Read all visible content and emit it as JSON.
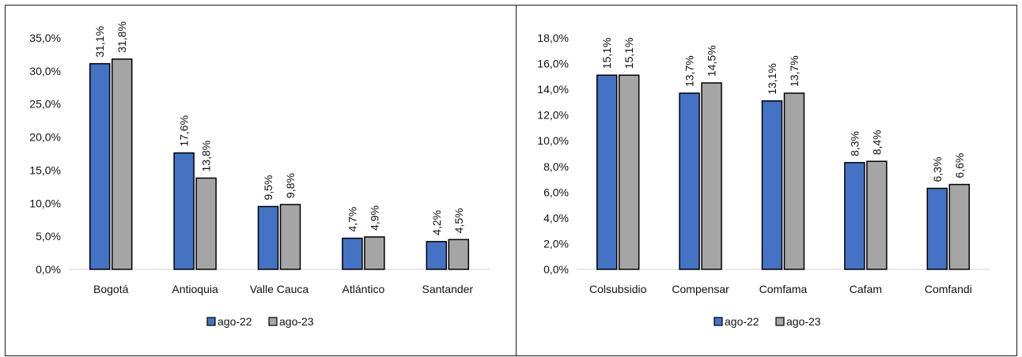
{
  "chart_data": [
    {
      "type": "bar",
      "categories": [
        "Bogotá",
        "Antioquia",
        "Valle Cauca",
        "Atlántico",
        "Santander"
      ],
      "series": [
        {
          "name": "ago-22",
          "values": [
            31.1,
            17.6,
            9.5,
            4.7,
            4.2
          ],
          "labels": [
            "31,1%",
            "17,6%",
            "9,5%",
            "4,7%",
            "4,2%"
          ],
          "color": "#4472C4"
        },
        {
          "name": "ago-23",
          "values": [
            31.8,
            13.8,
            9.8,
            4.9,
            4.5
          ],
          "labels": [
            "31,8%",
            "13,8%",
            "9,8%",
            "4,9%",
            "4,5%"
          ],
          "color": "#A5A5A5"
        }
      ],
      "ylim": [
        0,
        35
      ],
      "yticks": [
        0,
        5,
        10,
        15,
        20,
        25,
        30,
        35
      ],
      "ytick_labels": [
        "0,0%",
        "5,0%",
        "10,0%",
        "15,0%",
        "20,0%",
        "25,0%",
        "30,0%",
        "35,0%"
      ],
      "legend": "bottom",
      "grid": false
    },
    {
      "type": "bar",
      "categories": [
        "Colsubsidio",
        "Compensar",
        "Comfama",
        "Cafam",
        "Comfandi"
      ],
      "series": [
        {
          "name": "ago-22",
          "values": [
            15.1,
            13.7,
            13.1,
            8.3,
            6.3
          ],
          "labels": [
            "15,1%",
            "13,7%",
            "13,1%",
            "8,3%",
            "6,3%"
          ],
          "color": "#4472C4"
        },
        {
          "name": "ago-23",
          "values": [
            15.1,
            14.5,
            13.7,
            8.4,
            6.6
          ],
          "labels": [
            "15,1%",
            "14,5%",
            "13,7%",
            "8,4%",
            "6,6%"
          ],
          "color": "#A5A5A5"
        }
      ],
      "ylim": [
        0,
        18
      ],
      "yticks": [
        0,
        2,
        4,
        6,
        8,
        10,
        12,
        14,
        16,
        18
      ],
      "ytick_labels": [
        "0,0%",
        "2,0%",
        "4,0%",
        "6,0%",
        "8,0%",
        "10,0%",
        "12,0%",
        "14,0%",
        "16,0%",
        "18,0%"
      ],
      "legend": "bottom",
      "grid": false
    }
  ]
}
